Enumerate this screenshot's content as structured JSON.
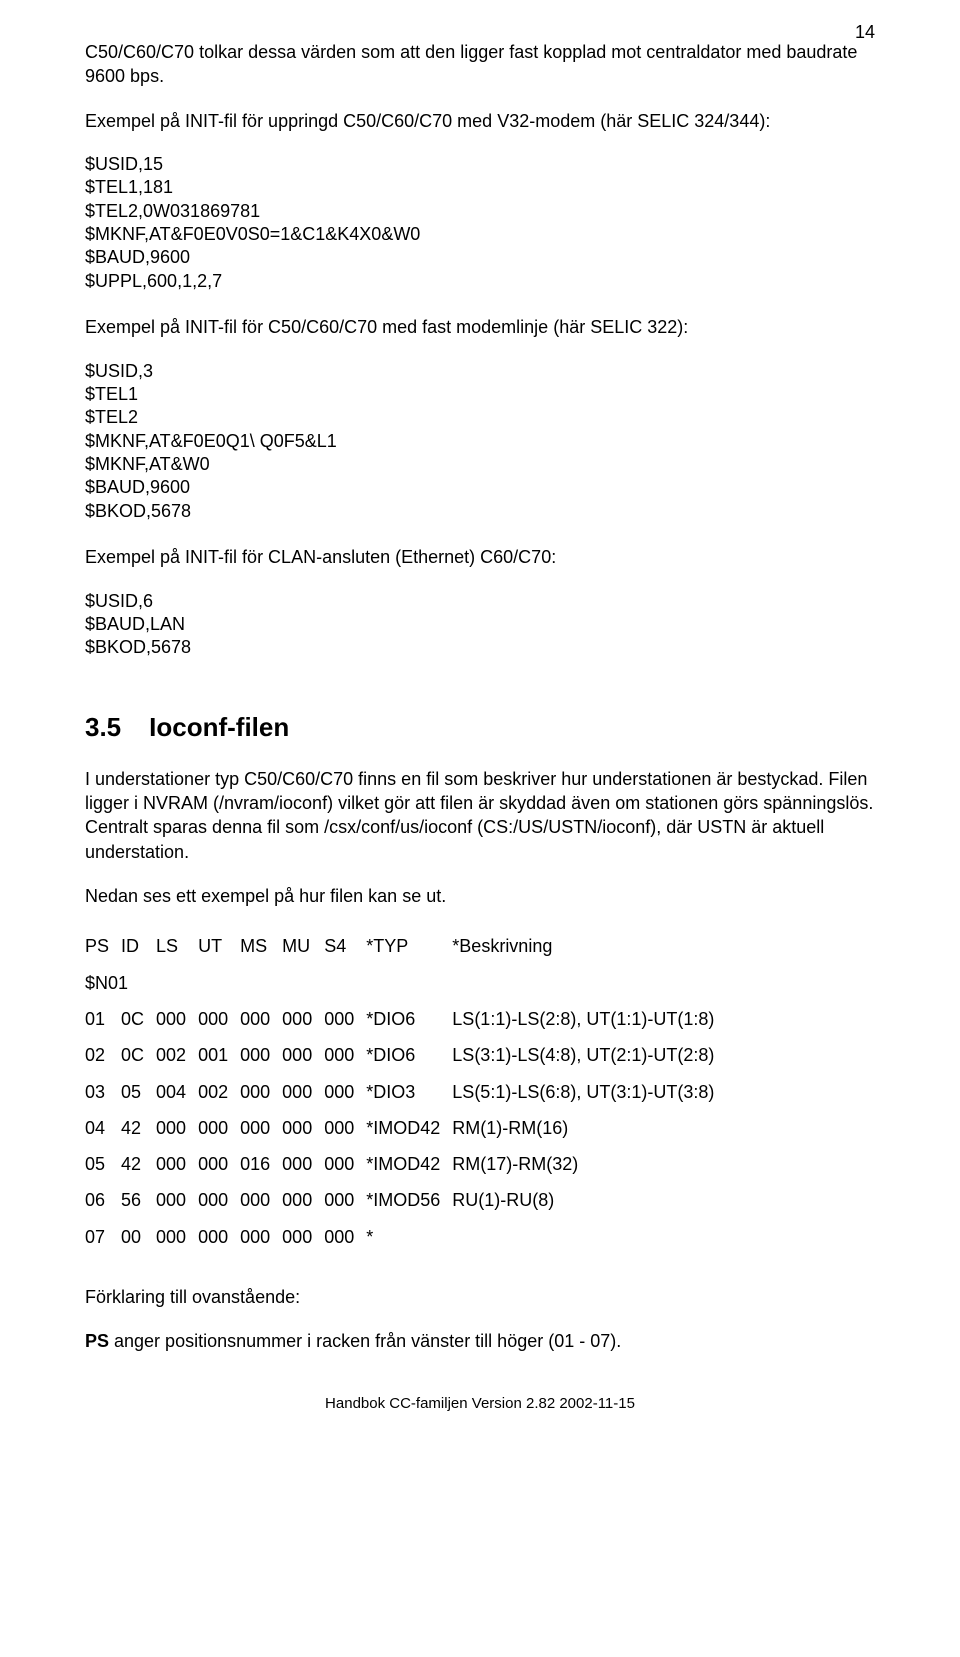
{
  "page_number": "14",
  "intro": "C50/C60/C70 tolkar dessa värden som att den ligger fast kopplad mot centraldator med baudrate 9600 bps.",
  "ex1_title": "Exempel på INIT-fil för uppringd C50/C60/C70 med V32-modem (här SELIC 324/344):",
  "ex1_lines": [
    "$USID,15",
    "$TEL1,181",
    "$TEL2,0W031869781",
    "$MKNF,AT&F0E0V0S0=1&C1&K4X0&W0",
    "$BAUD,9600",
    "$UPPL,600,1,2,7"
  ],
  "ex2_title": "Exempel på INIT-fil för C50/C60/C70 med fast modemlinje (här SELIC 322):",
  "ex2_lines": [
    "$USID,3",
    "$TEL1",
    "$TEL2",
    "$MKNF,AT&F0E0Q1\\ Q0F5&L1",
    "$MKNF,AT&W0",
    "$BAUD,9600",
    "$BKOD,5678"
  ],
  "ex3_title": "Exempel på INIT-fil för CLAN-ansluten (Ethernet) C60/C70:",
  "ex3_lines": [
    "$USID,6",
    "$BAUD,LAN",
    "$BKOD,5678"
  ],
  "section_num": "3.5",
  "section_title": "Ioconf-filen",
  "ioconf_p1": "I understationer typ C50/C60/C70 finns en fil som beskriver hur understationen är bestyckad. Filen ligger i NVRAM  (/nvram/ioconf) vilket gör att filen är skyddad även om stationen görs spänningslös. Centralt sparas denna fil som /csx/conf/us/ioconf (CS:/US/USTN/ioconf), där USTN är aktuell understation.",
  "ioconf_p2": "Nedan ses ett exempel på hur filen kan se ut.",
  "table_header": [
    "PS",
    "ID",
    "LS",
    "UT",
    "MS",
    "MU",
    "S4",
    "*TYP",
    "*Beskrivning"
  ],
  "n01": "$N01",
  "rows": [
    [
      "01",
      "0C",
      "000",
      "000",
      "000",
      "000",
      "000",
      "*DIO6",
      "LS(1:1)-LS(2:8), UT(1:1)-UT(1:8)"
    ],
    [
      "02",
      "0C",
      "002",
      "001",
      "000",
      "000",
      "000",
      "*DIO6",
      "LS(3:1)-LS(4:8), UT(2:1)-UT(2:8)"
    ],
    [
      "03",
      "05",
      "004",
      "002",
      "000",
      "000",
      "000",
      "*DIO3",
      "LS(5:1)-LS(6:8), UT(3:1)-UT(3:8)"
    ],
    [
      "04",
      "42",
      "000",
      "000",
      "000",
      "000",
      "000",
      "*IMOD42",
      "RM(1)-RM(16)"
    ],
    [
      "05",
      "42",
      "000",
      "000",
      "016",
      "000",
      "000",
      "*IMOD42",
      "RM(17)-RM(32)"
    ],
    [
      "06",
      "56",
      "000",
      "000",
      "000",
      "000",
      "000",
      "*IMOD56",
      "RU(1)-RU(8)"
    ],
    [
      "07",
      "00",
      "000",
      "000",
      "000",
      "000",
      "000",
      "*",
      ""
    ]
  ],
  "explain_title": "Förklaring till ovanstående:",
  "ps_label": "PS",
  "ps_text": " anger positionsnummer i racken från vänster till höger (01 - 07).",
  "footer": "Handbok CC-familjen Version 2.82 2002-11-15"
}
